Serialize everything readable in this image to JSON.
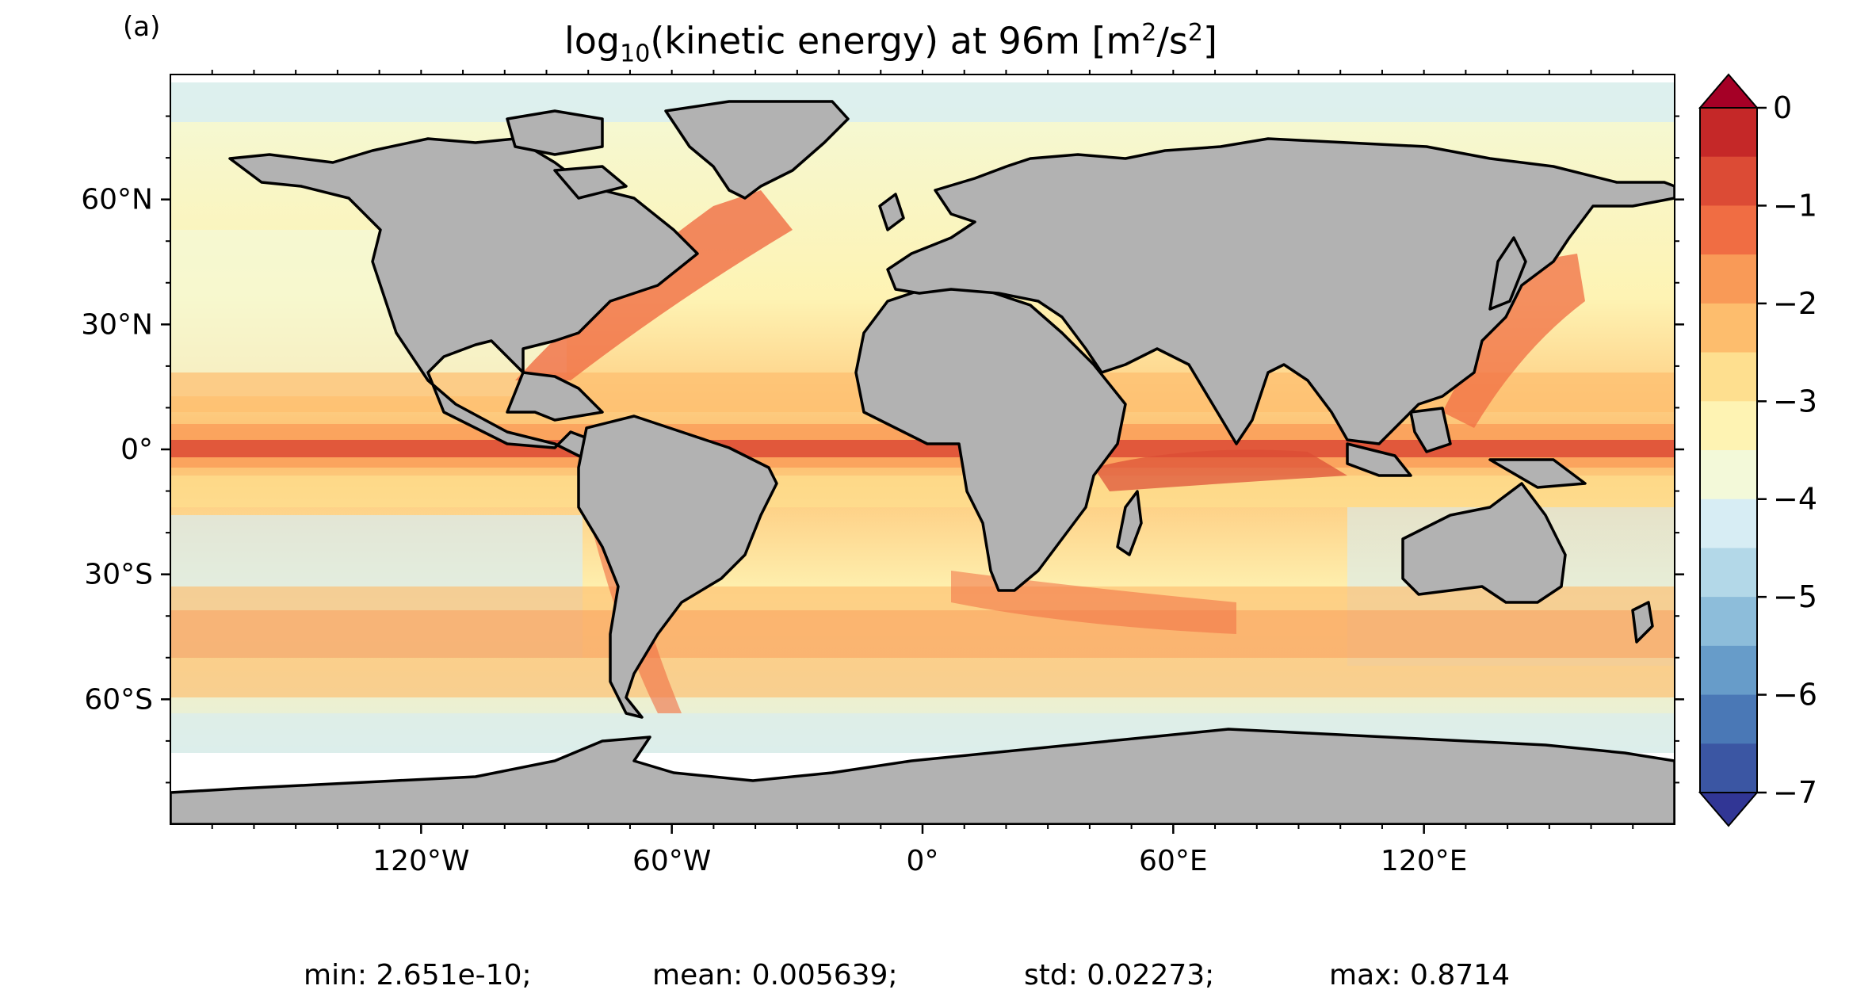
{
  "panel_label": "(a)",
  "title": {
    "prefix": "log",
    "sub": "10",
    "middle": "(kinetic energy) at 96m [m",
    "sup1": "2",
    "mid2": "/s",
    "sup2": "2",
    "suffix": "]"
  },
  "axes": {
    "lat_ticks": [
      {
        "value": 60,
        "label": "60°N"
      },
      {
        "value": 30,
        "label": "30°N"
      },
      {
        "value": 0,
        "label": "0°"
      },
      {
        "value": -30,
        "label": "30°S"
      },
      {
        "value": -60,
        "label": "60°S"
      }
    ],
    "lon_ticks": [
      {
        "value": -120,
        "label": "120°W"
      },
      {
        "value": -60,
        "label": "60°W"
      },
      {
        "value": 0,
        "label": "0°"
      },
      {
        "value": 60,
        "label": "60°E"
      },
      {
        "value": 120,
        "label": "120°E"
      }
    ],
    "lon_range": [
      -180,
      180
    ],
    "lat_range": [
      -90,
      90
    ]
  },
  "colorbar": {
    "range": [
      -7,
      0
    ],
    "tick_labels": [
      {
        "value": 0,
        "label": "0"
      },
      {
        "value": -1,
        "label": "−1"
      },
      {
        "value": -2,
        "label": "−2"
      },
      {
        "value": -3,
        "label": "−3"
      },
      {
        "value": -4,
        "label": "−4"
      },
      {
        "value": -5,
        "label": "−5"
      },
      {
        "value": -6,
        "label": "−6"
      },
      {
        "value": -7,
        "label": "−7"
      }
    ],
    "colors": [
      "#313695",
      "#3b56a3",
      "#4a78b6",
      "#679cc9",
      "#8dbdda",
      "#b3d8e8",
      "#d7edf4",
      "#f3f9d9",
      "#fef3b3",
      "#fedf8f",
      "#fdbd6d",
      "#f99a57",
      "#f06d43",
      "#dc4b35",
      "#c52828",
      "#a50026"
    ],
    "land_color": "#b2b2b2"
  },
  "stats": {
    "min": "min: 2.651e-10;",
    "mean": "mean: 0.005639;",
    "std": "std: 0.02273;",
    "max": "max: 0.8714"
  }
}
